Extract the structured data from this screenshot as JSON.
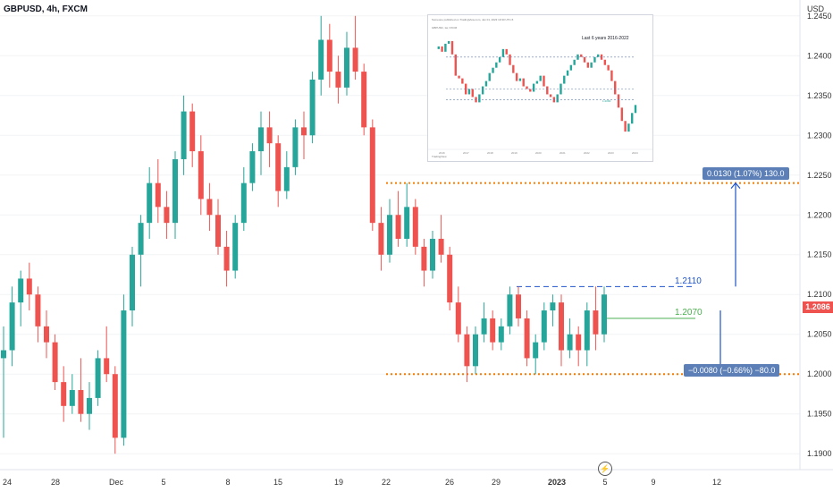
{
  "header": {
    "symbol": "GBPUSD, 4h, FXCM",
    "currency": "USD"
  },
  "current_price": "1.2086",
  "annotations": {
    "up_measure": "0.0130 (1.07%) 130.0",
    "down_measure": "−0.0080 (−0.66%) −80.0",
    "level_resistance": "1.2110",
    "level_mid": "1.2070"
  },
  "inset": {
    "title": "Last 6 years 2016-2022",
    "header_line": "Someone published on TradingView.com, Jan 01, 2023 19:30 UTC-5",
    "symbol_line": "GBPUSD, 1w, FXCM",
    "footer": "TradingView",
    "x_labels": [
      "2016",
      "2017",
      "2018",
      "2019",
      "2020",
      "2021",
      "2022",
      "2023",
      "2024"
    ],
    "callout": "1.2093"
  },
  "colors": {
    "up": "#26a69a",
    "down": "#ef5350",
    "dotted": "#f57c00",
    "blue": "#1e53c8",
    "green_line": "#4caf50",
    "badge": "#5b7fb6"
  },
  "chart_data": {
    "type": "candlestick",
    "title": "GBPUSD, 4h, FXCM",
    "ylim": [
      1.188,
      1.247
    ],
    "y_ticks": [
      1.19,
      1.195,
      1.2,
      1.205,
      1.21,
      1.215,
      1.22,
      1.225,
      1.23,
      1.235,
      1.24,
      1.245
    ],
    "x_tick_labels": [
      "24",
      "28",
      "Dec",
      "5",
      "8",
      "15",
      "19",
      "22",
      "26",
      "29",
      "2023",
      "5",
      "9",
      "12"
    ],
    "horizontal_levels": [
      {
        "value": 1.224,
        "style": "dotted",
        "color": "#f57c00"
      },
      {
        "value": 1.2,
        "style": "dotted",
        "color": "#f57c00"
      },
      {
        "value": 1.211,
        "style": "dashed",
        "color": "#1e53c8"
      },
      {
        "value": 1.207,
        "style": "solid",
        "color": "#4caf50"
      }
    ],
    "measures": [
      {
        "from": 1.211,
        "to": 1.224,
        "label": "0.0130 (1.07%) 130.0"
      },
      {
        "from": 1.208,
        "to": 1.2,
        "label": "−0.0080 (−0.66%) −80.0"
      }
    ],
    "ohlc": [
      [
        1.202,
        1.206,
        1.192,
        1.203
      ],
      [
        1.203,
        1.211,
        1.201,
        1.209
      ],
      [
        1.209,
        1.213,
        1.206,
        1.212
      ],
      [
        1.212,
        1.214,
        1.208,
        1.21
      ],
      [
        1.21,
        1.211,
        1.204,
        1.206
      ],
      [
        1.206,
        1.208,
        1.202,
        1.204
      ],
      [
        1.204,
        1.205,
        1.198,
        1.199
      ],
      [
        1.199,
        1.201,
        1.194,
        1.196
      ],
      [
        1.196,
        1.2,
        1.195,
        1.198
      ],
      [
        1.198,
        1.202,
        1.194,
        1.195
      ],
      [
        1.195,
        1.199,
        1.193,
        1.197
      ],
      [
        1.197,
        1.203,
        1.196,
        1.202
      ],
      [
        1.202,
        1.206,
        1.199,
        1.2
      ],
      [
        1.2,
        1.201,
        1.19,
        1.192
      ],
      [
        1.192,
        1.21,
        1.191,
        1.208
      ],
      [
        1.208,
        1.216,
        1.206,
        1.215
      ],
      [
        1.215,
        1.22,
        1.211,
        1.219
      ],
      [
        1.219,
        1.226,
        1.217,
        1.224
      ],
      [
        1.224,
        1.227,
        1.219,
        1.221
      ],
      [
        1.221,
        1.223,
        1.217,
        1.219
      ],
      [
        1.219,
        1.228,
        1.217,
        1.227
      ],
      [
        1.227,
        1.235,
        1.225,
        1.233
      ],
      [
        1.233,
        1.234,
        1.226,
        1.228
      ],
      [
        1.228,
        1.23,
        1.22,
        1.222
      ],
      [
        1.222,
        1.224,
        1.218,
        1.22
      ],
      [
        1.22,
        1.222,
        1.215,
        1.216
      ],
      [
        1.216,
        1.218,
        1.211,
        1.213
      ],
      [
        1.213,
        1.22,
        1.212,
        1.219
      ],
      [
        1.219,
        1.226,
        1.218,
        1.224
      ],
      [
        1.224,
        1.229,
        1.223,
        1.228
      ],
      [
        1.228,
        1.233,
        1.225,
        1.231
      ],
      [
        1.231,
        1.233,
        1.226,
        1.229
      ],
      [
        1.229,
        1.23,
        1.221,
        1.223
      ],
      [
        1.223,
        1.228,
        1.222,
        1.226
      ],
      [
        1.226,
        1.232,
        1.225,
        1.231
      ],
      [
        1.231,
        1.233,
        1.227,
        1.23
      ],
      [
        1.23,
        1.238,
        1.229,
        1.237
      ],
      [
        1.237,
        1.245,
        1.235,
        1.242
      ],
      [
        1.242,
        1.244,
        1.236,
        1.238
      ],
      [
        1.238,
        1.24,
        1.234,
        1.236
      ],
      [
        1.236,
        1.243,
        1.235,
        1.241
      ],
      [
        1.241,
        1.245,
        1.237,
        1.238
      ],
      [
        1.238,
        1.239,
        1.23,
        1.231
      ],
      [
        1.231,
        1.232,
        1.218,
        1.219
      ],
      [
        1.219,
        1.221,
        1.213,
        1.215
      ],
      [
        1.215,
        1.222,
        1.214,
        1.22
      ],
      [
        1.22,
        1.223,
        1.216,
        1.217
      ],
      [
        1.217,
        1.224,
        1.216,
        1.221
      ],
      [
        1.221,
        1.222,
        1.215,
        1.216
      ],
      [
        1.216,
        1.217,
        1.211,
        1.213
      ],
      [
        1.213,
        1.218,
        1.212,
        1.217
      ],
      [
        1.217,
        1.22,
        1.214,
        1.215
      ],
      [
        1.215,
        1.216,
        1.208,
        1.209
      ],
      [
        1.209,
        1.211,
        1.204,
        1.205
      ],
      [
        1.205,
        1.206,
        1.199,
        1.201
      ],
      [
        1.201,
        1.206,
        1.2,
        1.205
      ],
      [
        1.205,
        1.209,
        1.204,
        1.207
      ],
      [
        1.207,
        1.208,
        1.203,
        1.204
      ],
      [
        1.204,
        1.207,
        1.203,
        1.206
      ],
      [
        1.206,
        1.211,
        1.205,
        1.21
      ],
      [
        1.21,
        1.211,
        1.206,
        1.207
      ],
      [
        1.207,
        1.208,
        1.201,
        1.202
      ],
      [
        1.202,
        1.205,
        1.2,
        1.204
      ],
      [
        1.204,
        1.209,
        1.203,
        1.208
      ],
      [
        1.208,
        1.21,
        1.206,
        1.209
      ],
      [
        1.209,
        1.21,
        1.201,
        1.203
      ],
      [
        1.203,
        1.207,
        1.202,
        1.205
      ],
      [
        1.205,
        1.206,
        1.201,
        1.203
      ],
      [
        1.203,
        1.209,
        1.201,
        1.208
      ],
      [
        1.208,
        1.211,
        1.203,
        1.205
      ],
      [
        1.205,
        1.211,
        1.204,
        1.21
      ]
    ]
  }
}
